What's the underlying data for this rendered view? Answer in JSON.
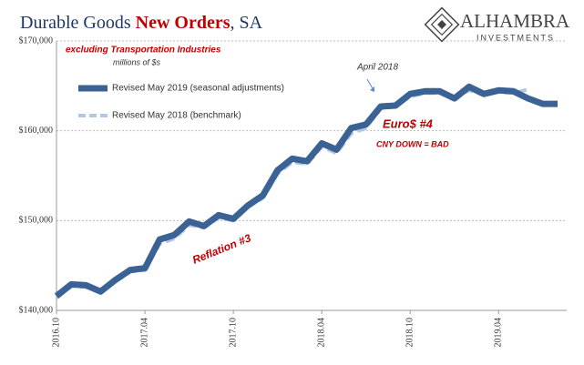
{
  "chart_data": {
    "type": "line",
    "title_parts": [
      "Durable Goods",
      "New Orders",
      ", SA"
    ],
    "logo": {
      "name": "ALHAMBRA",
      "tagline": "INVESTMENTS"
    },
    "annotations": [
      "excluding Transportation  Industries",
      "millions of $s",
      "April 2018",
      "Euro$ #4",
      "CNY DOWN = BAD",
      "Reflation #3"
    ],
    "categories": [
      "2016.10",
      null,
      null,
      null,
      null,
      null,
      "2017.04",
      null,
      null,
      null,
      null,
      null,
      "2017.10",
      null,
      null,
      null,
      null,
      null,
      "2018.04",
      null,
      null,
      null,
      null,
      null,
      "2018.10",
      null,
      null,
      null,
      null,
      null,
      "2019.04",
      null,
      null,
      null,
      null
    ],
    "series": [
      {
        "name": "Revised May 2019 (seasonal adjustments)",
        "color": "#3b6294",
        "values": [
          141600,
          142900,
          142800,
          142100,
          143400,
          144500,
          144700,
          147900,
          148400,
          149900,
          149400,
          150600,
          150200,
          151700,
          152800,
          155600,
          156900,
          156600,
          158600,
          157900,
          160300,
          160700,
          162700,
          162800,
          164100,
          164400,
          164400,
          163600,
          164900,
          164100,
          164500,
          164400,
          163600,
          163000,
          163000
        ]
      },
      {
        "name": "Revised May 2018 (benchmark)",
        "color": "#b4c7e7",
        "values": [
          141400,
          142700,
          142600,
          142000,
          143200,
          144300,
          144500,
          147400,
          148000,
          149500,
          149200,
          150300,
          150000,
          151500,
          152500,
          155200,
          156500,
          156300,
          158200,
          157500,
          159700,
          160300,
          162500,
          162700,
          163800,
          164200,
          164200,
          163700,
          164500,
          164000,
          164300,
          164200,
          164600,
          null,
          null
        ]
      }
    ],
    "ylim": [
      140000,
      170000
    ],
    "yticks": [
      {
        "value": 140000,
        "label": "$140,000"
      },
      {
        "value": 150000,
        "label": "$150,000"
      },
      {
        "value": 160000,
        "label": "$160,000"
      },
      {
        "value": 170000,
        "label": "$170,000"
      }
    ],
    "grid": true
  }
}
